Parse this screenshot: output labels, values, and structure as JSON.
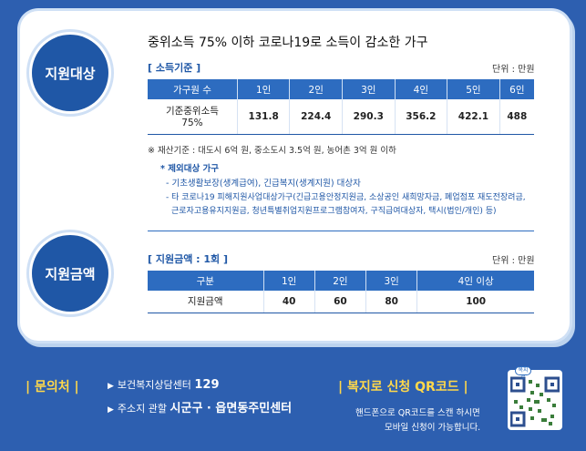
{
  "target": {
    "circle_label": "지원대상",
    "headline": "중위소득 75% 이하 코로나19로 소득이 감소한 가구",
    "income_label": "[ 소득기준 ]",
    "unit": "단위 : 만원",
    "headers": [
      "가구원 수",
      "1인",
      "2인",
      "3인",
      "4인",
      "5인",
      "6인"
    ],
    "row_label_1": "기준중위소득",
    "row_label_2": "75%",
    "values": [
      "131.8",
      "224.4",
      "290.3",
      "356.2",
      "422.1",
      "488"
    ],
    "property": "※ 재산기준 : 대도시 6억 원, 중소도시 3.5억 원, 농어촌 3억 원 이하",
    "excluded_title": "* 제외대상 가구",
    "excluded_1": "- 기초생활보장(생계급여), 긴급복지(생계지원) 대상자",
    "excluded_2": "- 타 코로나19 피해지원사업대상가구(긴급고용안정지원금, 소상공인 새희망자금, 폐업점포 재도전장려금,",
    "excluded_3": "근로자고용유지지원금, 청년특별취업지원프로그램참여자, 구직급여대상자, 택시(법인/개인) 등)"
  },
  "amount": {
    "circle_label": "지원금액",
    "title": "[ 지원금액 : 1회 ]",
    "unit": "단위 : 만원",
    "headers": [
      "구분",
      "1인",
      "2인",
      "3인",
      "4인 이상"
    ],
    "row_label": "지원금액",
    "values": [
      "40",
      "60",
      "80",
      "100"
    ]
  },
  "footer": {
    "inquiry_label": "| 문의처 |",
    "line1_prefix": "보건복지상담센터",
    "line1_number": "129",
    "line2_prefix": "주소지 관할",
    "line2_bold": "시군구 · 읍면동주민센터",
    "qr_label": "| 복지로 신청 QR코드 |",
    "qr_text_1": "핸드폰으로 QR코드를 스캔 하시면",
    "qr_text_2": "모바일 신청이 가능합니다.",
    "qr_logo": "복지로"
  }
}
